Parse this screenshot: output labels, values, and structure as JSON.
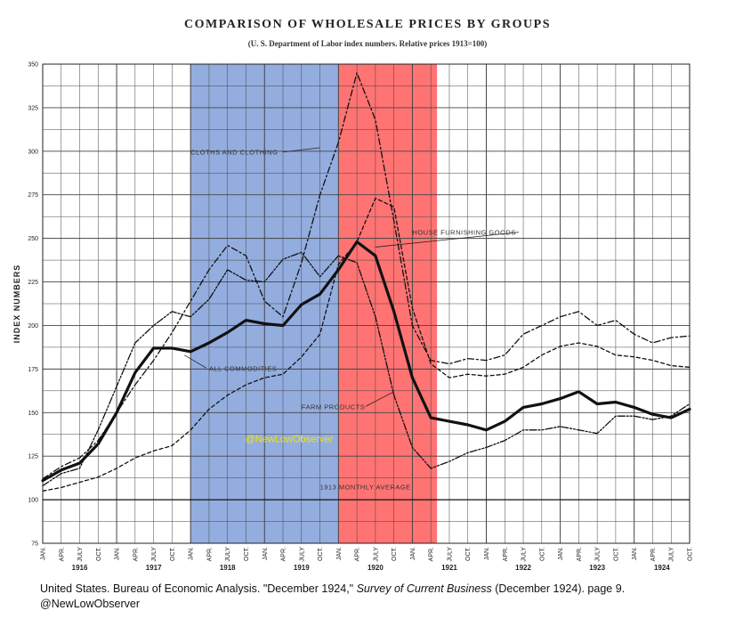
{
  "chart_data": {
    "type": "line",
    "title": "COMPARISON OF WHOLESALE PRICES BY GROUPS",
    "subtitle": "(U. S. Department of Labor index numbers.  Relative prices 1913=100)",
    "ylabel": "INDEX NUMBERS",
    "ylim": [
      75,
      350
    ],
    "y_ticks": [
      "75",
      "100",
      "125",
      "150",
      "175",
      "200",
      "225",
      "250",
      "275",
      "300",
      "325",
      "350"
    ],
    "x_range": [
      "1916-01",
      "1924-10"
    ],
    "month_ticks": [
      "JAN.",
      "APR.",
      "JULY",
      "OCT."
    ],
    "year_labels": [
      "1916",
      "1917",
      "1918",
      "1919",
      "1920",
      "1921",
      "1922",
      "1923",
      "1924"
    ],
    "shaded_periods": [
      {
        "start": "1918-01",
        "end": "1919-12",
        "color": "#8ea9dd"
      },
      {
        "start": "1920-01",
        "end": "1921-04",
        "color": "#ff6b6b"
      }
    ],
    "series": [
      {
        "name": "ALL COMMODITIES",
        "style": "heavy",
        "points": [
          [
            "1916-01",
            111
          ],
          [
            "1916-04",
            117
          ],
          [
            "1916-07",
            121
          ],
          [
            "1916-10",
            132
          ],
          [
            "1917-01",
            150
          ],
          [
            "1917-04",
            173
          ],
          [
            "1917-07",
            187
          ],
          [
            "1917-10",
            187
          ],
          [
            "1918-01",
            185
          ],
          [
            "1918-04",
            190
          ],
          [
            "1918-07",
            196
          ],
          [
            "1918-10",
            203
          ],
          [
            "1919-01",
            201
          ],
          [
            "1919-04",
            200
          ],
          [
            "1919-07",
            212
          ],
          [
            "1919-10",
            218
          ],
          [
            "1920-01",
            232
          ],
          [
            "1920-04",
            248
          ],
          [
            "1920-07",
            240
          ],
          [
            "1920-10",
            208
          ],
          [
            "1921-01",
            170
          ],
          [
            "1921-04",
            147
          ],
          [
            "1921-07",
            145
          ],
          [
            "1921-10",
            143
          ],
          [
            "1922-01",
            140
          ],
          [
            "1922-04",
            145
          ],
          [
            "1922-07",
            153
          ],
          [
            "1922-10",
            155
          ],
          [
            "1923-01",
            158
          ],
          [
            "1923-04",
            162
          ],
          [
            "1923-07",
            155
          ],
          [
            "1923-10",
            156
          ],
          [
            "1924-01",
            153
          ],
          [
            "1924-04",
            149
          ],
          [
            "1924-07",
            147
          ],
          [
            "1924-10",
            152
          ]
        ]
      },
      {
        "name": "CLOTHS AND CLOTHING",
        "style": "dash-dot",
        "points": [
          [
            "1916-01",
            112
          ],
          [
            "1916-04",
            119
          ],
          [
            "1916-07",
            124
          ],
          [
            "1916-10",
            134
          ],
          [
            "1917-01",
            150
          ],
          [
            "1917-04",
            166
          ],
          [
            "1917-07",
            180
          ],
          [
            "1917-10",
            196
          ],
          [
            "1918-01",
            214
          ],
          [
            "1918-04",
            232
          ],
          [
            "1918-07",
            246
          ],
          [
            "1918-10",
            240
          ],
          [
            "1919-01",
            214
          ],
          [
            "1919-04",
            205
          ],
          [
            "1919-07",
            236
          ],
          [
            "1919-10",
            275
          ],
          [
            "1920-01",
            305
          ],
          [
            "1920-04",
            345
          ],
          [
            "1920-07",
            318
          ],
          [
            "1920-10",
            260
          ],
          [
            "1921-01",
            200
          ],
          [
            "1921-04",
            180
          ],
          [
            "1921-07",
            178
          ],
          [
            "1921-10",
            181
          ],
          [
            "1922-01",
            180
          ],
          [
            "1922-04",
            183
          ],
          [
            "1922-07",
            195
          ],
          [
            "1922-10",
            200
          ],
          [
            "1923-01",
            205
          ],
          [
            "1923-04",
            208
          ],
          [
            "1923-07",
            200
          ],
          [
            "1923-10",
            203
          ],
          [
            "1924-01",
            195
          ],
          [
            "1924-04",
            190
          ],
          [
            "1924-07",
            193
          ],
          [
            "1924-10",
            194
          ]
        ]
      },
      {
        "name": "HOUSE FURNISHING GOODS",
        "style": "dashed",
        "points": [
          [
            "1916-01",
            105
          ],
          [
            "1916-04",
            107
          ],
          [
            "1916-07",
            110
          ],
          [
            "1916-10",
            113
          ],
          [
            "1917-01",
            118
          ],
          [
            "1917-04",
            124
          ],
          [
            "1917-07",
            128
          ],
          [
            "1917-10",
            131
          ],
          [
            "1918-01",
            140
          ],
          [
            "1918-04",
            152
          ],
          [
            "1918-07",
            160
          ],
          [
            "1918-10",
            166
          ],
          [
            "1919-01",
            170
          ],
          [
            "1919-04",
            172
          ],
          [
            "1919-07",
            182
          ],
          [
            "1919-10",
            195
          ],
          [
            "1920-01",
            235
          ],
          [
            "1920-04",
            248
          ],
          [
            "1920-07",
            273
          ],
          [
            "1920-10",
            268
          ],
          [
            "1921-01",
            210
          ],
          [
            "1921-04",
            178
          ],
          [
            "1921-07",
            170
          ],
          [
            "1921-10",
            172
          ],
          [
            "1922-01",
            171
          ],
          [
            "1922-04",
            172
          ],
          [
            "1922-07",
            176
          ],
          [
            "1922-10",
            183
          ],
          [
            "1923-01",
            188
          ],
          [
            "1923-04",
            190
          ],
          [
            "1923-07",
            188
          ],
          [
            "1923-10",
            183
          ],
          [
            "1924-01",
            182
          ],
          [
            "1924-04",
            180
          ],
          [
            "1924-07",
            177
          ],
          [
            "1924-10",
            176
          ]
        ]
      },
      {
        "name": "FARM PRODUCTS",
        "style": "dash-dot-dot",
        "points": [
          [
            "1916-01",
            108
          ],
          [
            "1916-04",
            115
          ],
          [
            "1916-07",
            118
          ],
          [
            "1916-10",
            140
          ],
          [
            "1917-01",
            165
          ],
          [
            "1917-04",
            190
          ],
          [
            "1917-07",
            200
          ],
          [
            "1917-10",
            208
          ],
          [
            "1918-01",
            205
          ],
          [
            "1918-04",
            215
          ],
          [
            "1918-07",
            232
          ],
          [
            "1918-10",
            226
          ],
          [
            "1919-01",
            225
          ],
          [
            "1919-04",
            238
          ],
          [
            "1919-07",
            242
          ],
          [
            "1919-10",
            228
          ],
          [
            "1920-01",
            240
          ],
          [
            "1920-04",
            236
          ],
          [
            "1920-07",
            205
          ],
          [
            "1920-10",
            160
          ],
          [
            "1921-01",
            130
          ],
          [
            "1921-04",
            118
          ],
          [
            "1921-07",
            122
          ],
          [
            "1921-10",
            127
          ],
          [
            "1922-01",
            130
          ],
          [
            "1922-04",
            134
          ],
          [
            "1922-07",
            140
          ],
          [
            "1922-10",
            140
          ],
          [
            "1923-01",
            142
          ],
          [
            "1923-04",
            140
          ],
          [
            "1923-07",
            138
          ],
          [
            "1923-10",
            148
          ],
          [
            "1924-01",
            148
          ],
          [
            "1924-04",
            146
          ],
          [
            "1924-07",
            148
          ],
          [
            "1924-10",
            155
          ]
        ]
      },
      {
        "name": "1913 MONTHLY AVERAGE",
        "style": "solid",
        "points": [
          [
            "1916-01",
            100
          ],
          [
            "1924-10",
            100
          ]
        ]
      }
    ],
    "annotations": [
      "CLOTHS AND CLOTHING",
      "ALL COMMODITIES",
      "HOUSE FURNISHING GOODS",
      "FARM PRODUCTS",
      "1913 MONTHLY AVERAGE"
    ],
    "watermark": "@NewLowObserver",
    "grid": true
  },
  "caption": {
    "line1_before": "United States. Bureau of Economic Analysis. \"December 1924,\" ",
    "line1_italic": "Survey of Current Business",
    "line1_after": " (December 1924). page 9.",
    "line2": "@NewLowObserver"
  }
}
